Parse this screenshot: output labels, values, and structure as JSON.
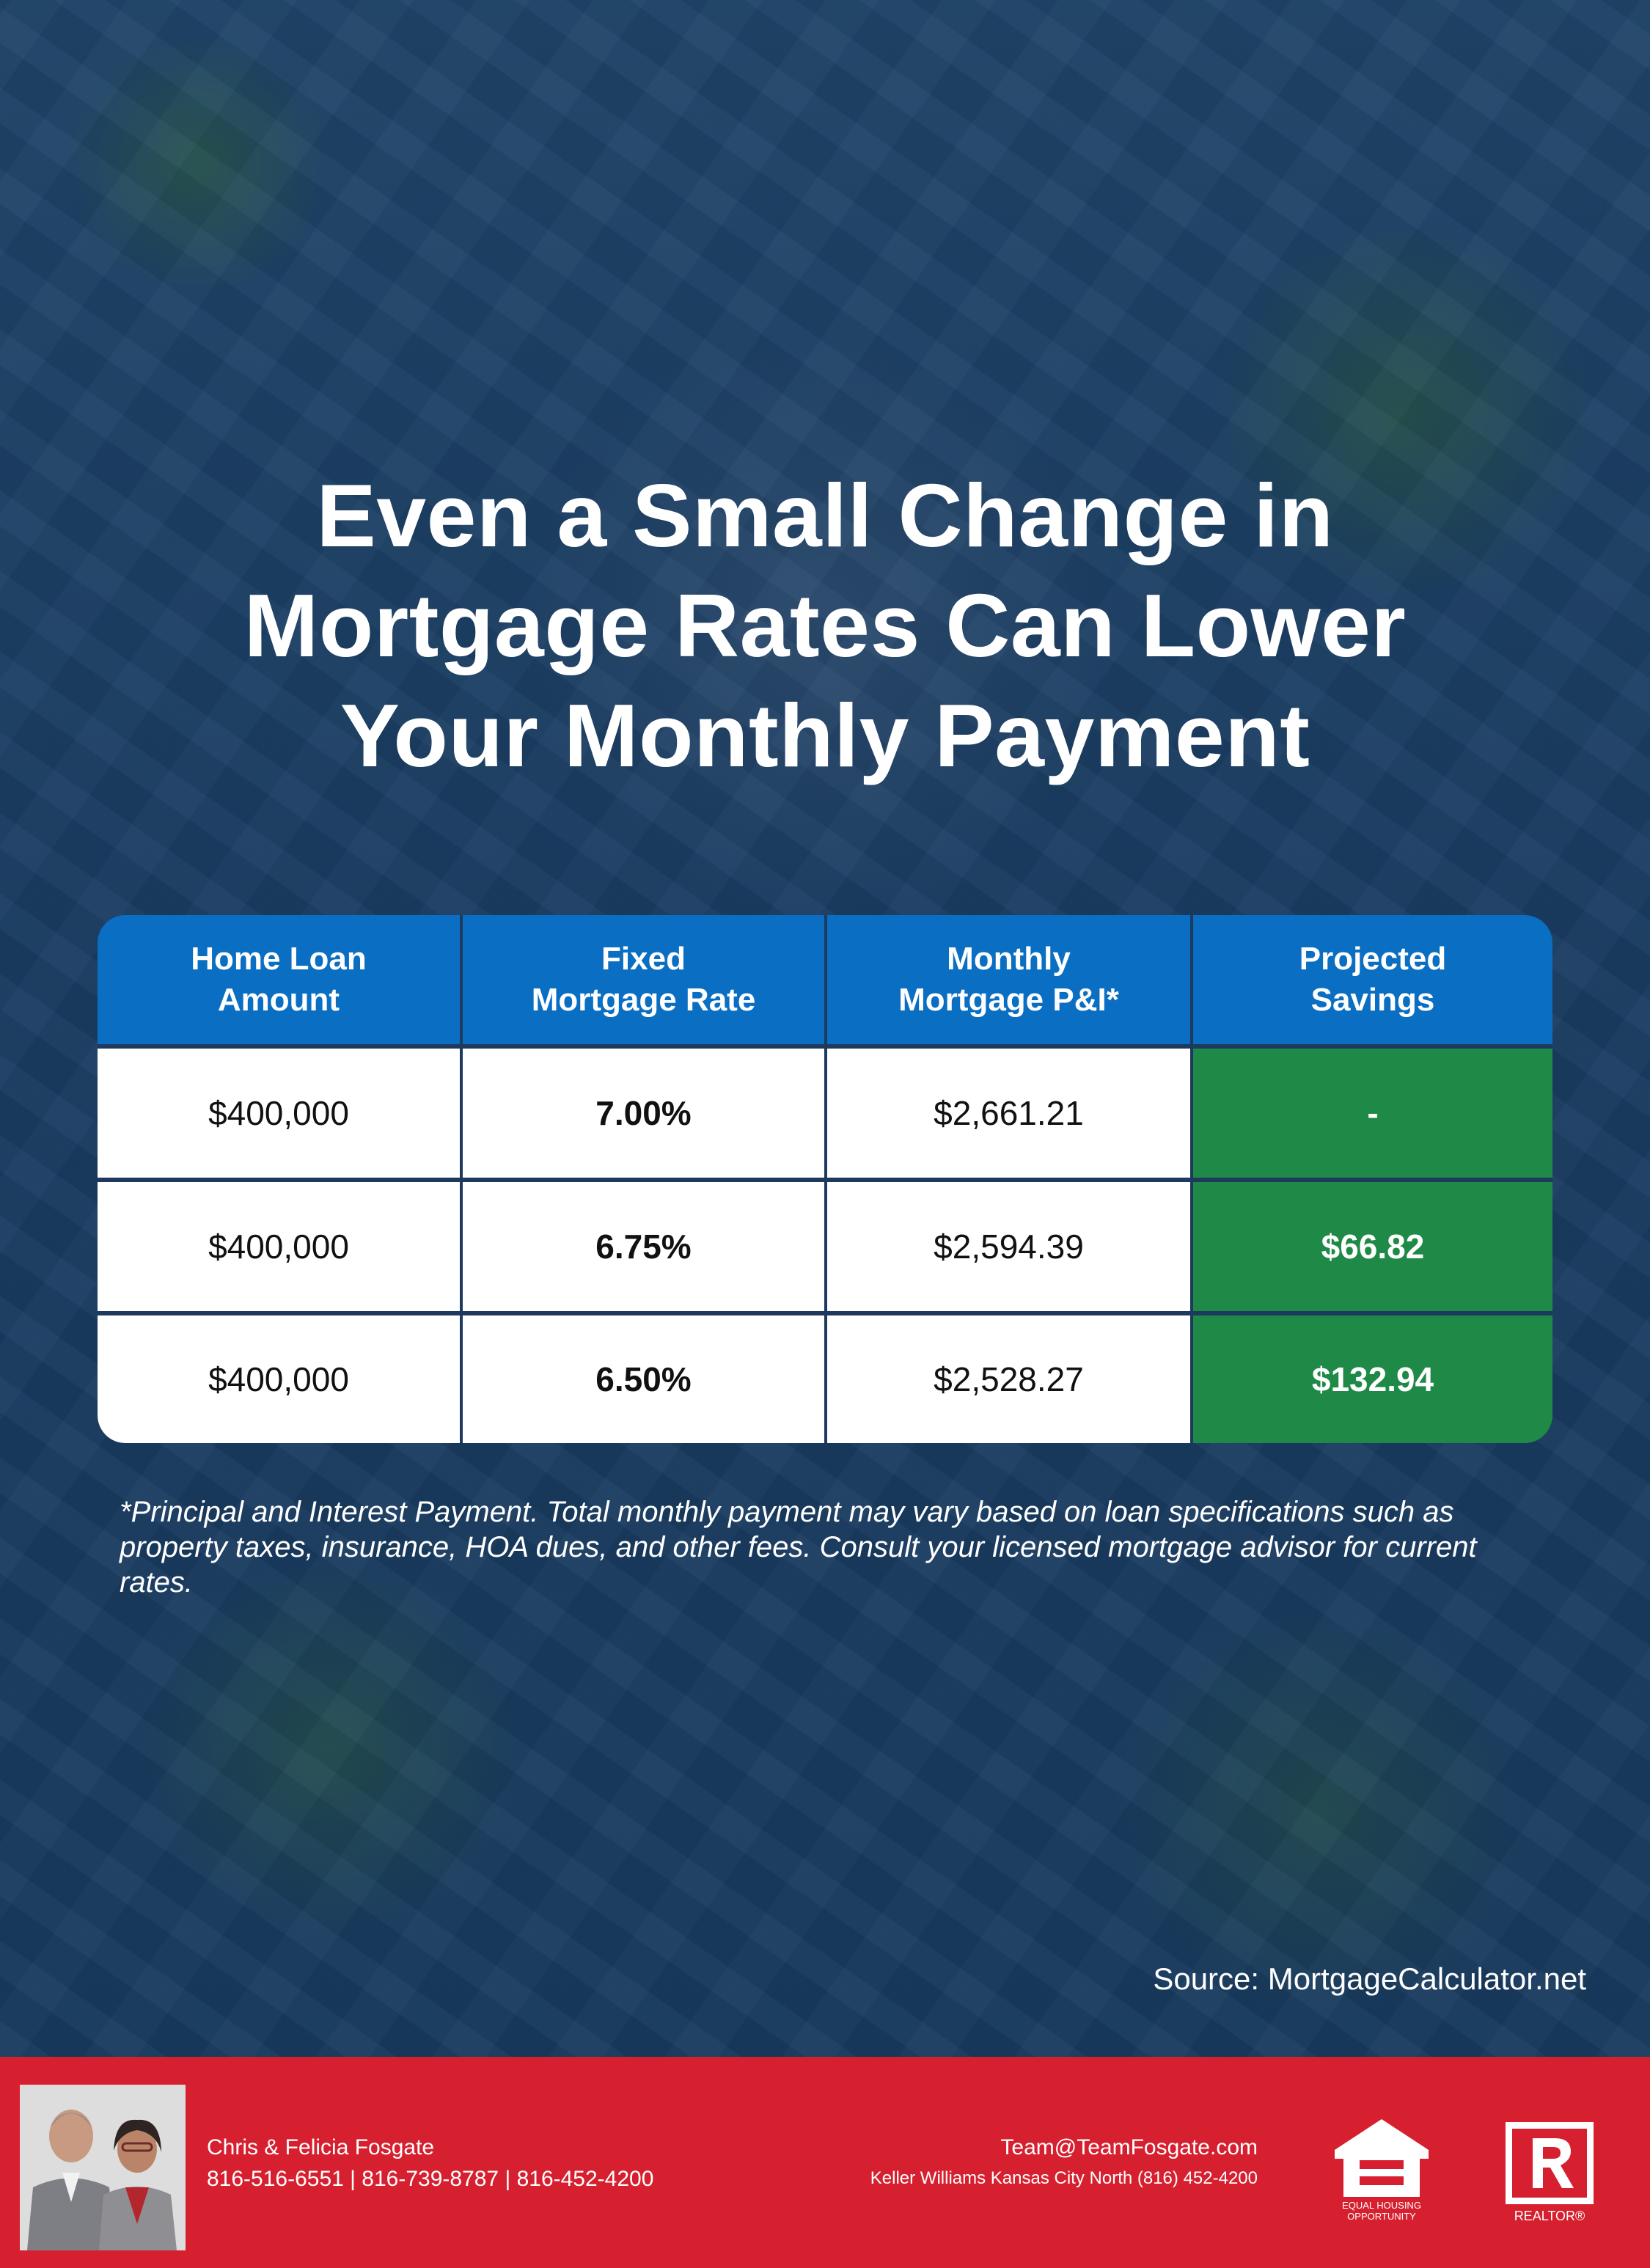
{
  "title": {
    "line1": "Even a Small Change in",
    "line2": "Mortgage Rates Can Lower",
    "line3": "Your Monthly Payment"
  },
  "table": {
    "headers": [
      {
        "line1": "Home Loan",
        "line2": "Amount"
      },
      {
        "line1": "Fixed",
        "line2": "Mortgage Rate"
      },
      {
        "line1": "Monthly",
        "line2": "Mortgage P&I*"
      },
      {
        "line1": "Projected",
        "line2": "Savings"
      }
    ],
    "rows": [
      {
        "amount": "$400,000",
        "rate": "7.00%",
        "payment": "$2,661.21",
        "savings": "-"
      },
      {
        "amount": "$400,000",
        "rate": "6.75%",
        "payment": "$2,594.39",
        "savings": "$66.82"
      },
      {
        "amount": "$400,000",
        "rate": "6.50%",
        "payment": "$2,528.27",
        "savings": "$132.94"
      }
    ]
  },
  "footnote": "*Principal and Interest Payment. Total monthly payment may vary based on loan specifications such as property taxes, insurance, HOA dues, and other fees. Consult your licensed mortgage advisor for current rates.",
  "source": "Source: MortgageCalculator.net",
  "footer": {
    "agent_name": "Chris & Felicia Fosgate",
    "agent_phones": "816-516-6551 | 816-739-8787 | 816-452-4200",
    "email": "Team@TeamFosgate.com",
    "office": "Keller Williams Kansas City North (816) 452-4200",
    "eho_text_1": "EQUAL HOUSING",
    "eho_text_2": "OPPORTUNITY",
    "realtor_text": "REALTOR®"
  },
  "colors": {
    "background": "#1b3b5f",
    "header_blue": "#0a6fc2",
    "savings_green": "#1f8a47",
    "footer_red": "#d7202f"
  }
}
